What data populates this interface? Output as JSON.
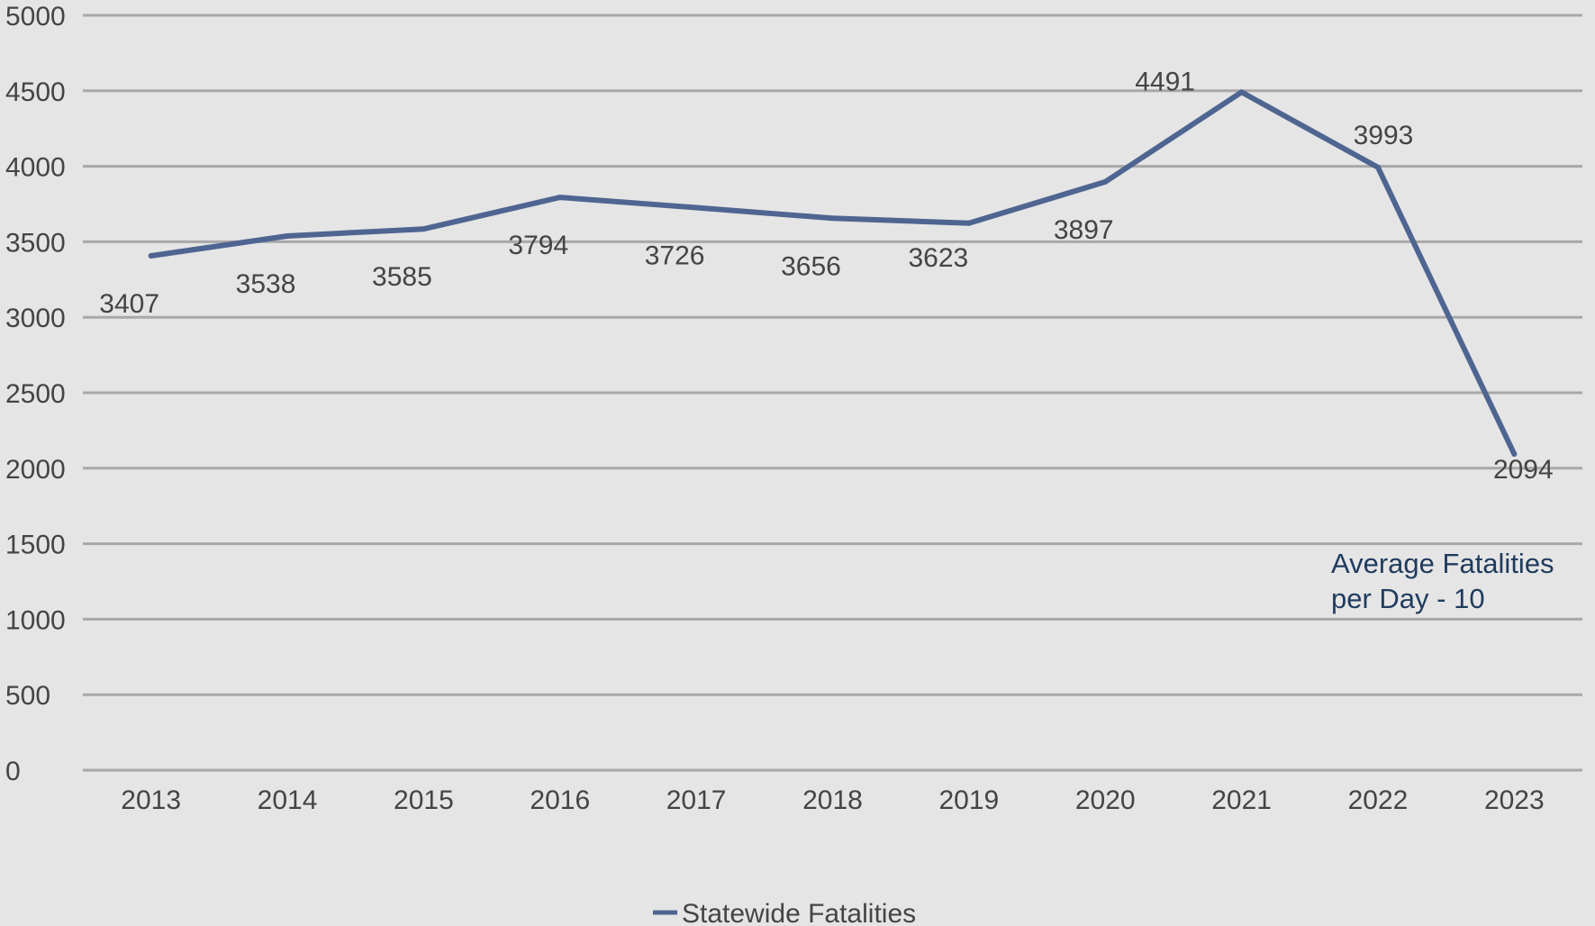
{
  "chart_data": {
    "type": "line",
    "categories": [
      "2013",
      "2014",
      "2015",
      "2016",
      "2017",
      "2018",
      "2019",
      "2020",
      "2021",
      "2022",
      "2023"
    ],
    "series": [
      {
        "name": "Statewide Fatalities",
        "values": [
          3407,
          3538,
          3585,
          3794,
          3726,
          3656,
          3623,
          3897,
          4491,
          3993,
          2094
        ],
        "color": "#4f6591"
      }
    ],
    "ylim": [
      0,
      5000
    ],
    "yticks": [
      0,
      500,
      1000,
      1500,
      2000,
      2500,
      3000,
      3500,
      4000,
      4500,
      5000
    ],
    "grid": true,
    "legend_position": "bottom",
    "annotation": {
      "lines": [
        "Average Fatalities",
        "per Day - 10"
      ]
    },
    "colors": {
      "background": "#e5e5e5",
      "grid": "#a8a8a8",
      "text": "#444444",
      "annotation": "#1f3b5e"
    }
  }
}
